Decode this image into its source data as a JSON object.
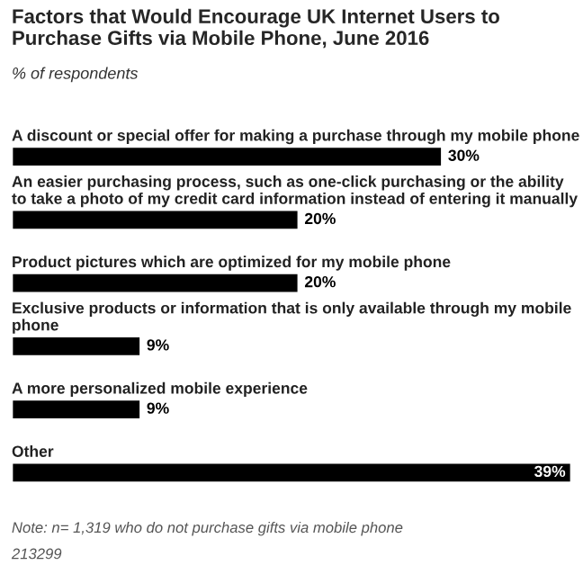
{
  "chart_data": {
    "type": "bar",
    "orientation": "horizontal",
    "title": "Factors that Would Encourage UK Internet Users to Purchase Gifts via Mobile Phone, June 2016",
    "subtitle": "% of respondents",
    "categories": [
      "A discount or special offer for making a purchase through my mobile phone",
      "An easier purchasing process, such as one-click purchasing or the ability to take a photo of my credit card information instead of entering it manually",
      "Product pictures which are optimized for my mobile phone",
      "Exclusive products or information that is only available through my mobile phone",
      "A more personalized mobile experience",
      "Other"
    ],
    "values": [
      30,
      20,
      20,
      9,
      9,
      39
    ],
    "value_labels": [
      "30%",
      "20%",
      "20%",
      "9%",
      "9%",
      "39%"
    ],
    "color": "#000000",
    "annotations": [
      "Note: n= 1,319 who do not purchase gifts via mobile phone",
      "213299"
    ]
  }
}
